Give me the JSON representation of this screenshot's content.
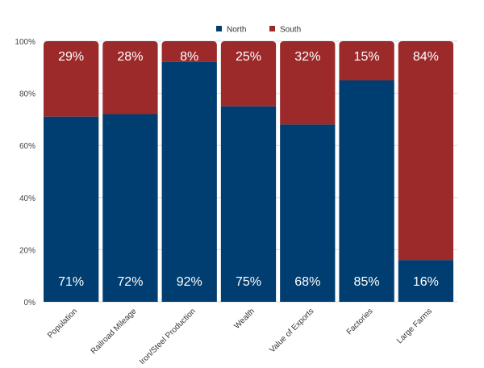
{
  "chart_data": {
    "type": "bar",
    "stacked": true,
    "title": "",
    "xlabel": "",
    "ylabel": "",
    "ylim": [
      0,
      100
    ],
    "yticks": [
      "0%",
      "20%",
      "40%",
      "60%",
      "80%",
      "100%"
    ],
    "grid": true,
    "legend_position": "top-center",
    "categories": [
      "Population",
      "Railroad Mileage",
      "Iron/Steel Production",
      "Wealth",
      "Value of Exports",
      "Factories",
      "Large Farms"
    ],
    "series": [
      {
        "name": "North",
        "color": "#003e71",
        "values": [
          71,
          72,
          92,
          75,
          68,
          85,
          16
        ],
        "labels": [
          "71%",
          "72%",
          "92%",
          "75%",
          "68%",
          "85%",
          "16%"
        ]
      },
      {
        "name": "South",
        "color": "#9c2a2b",
        "values": [
          29,
          28,
          8,
          25,
          32,
          15,
          84
        ],
        "labels": [
          "29%",
          "28%",
          "8%",
          "25%",
          "32%",
          "15%",
          "84%"
        ]
      }
    ]
  }
}
